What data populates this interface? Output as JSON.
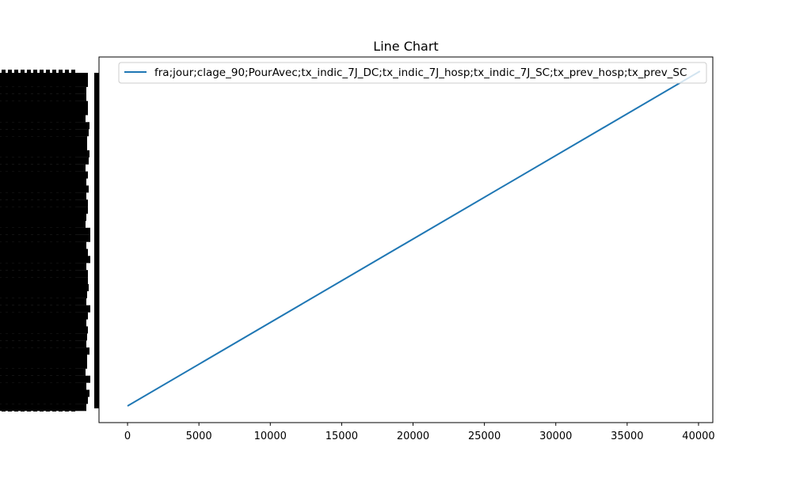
{
  "chart_data": {
    "type": "line",
    "title": "Line Chart",
    "xlabel": "",
    "ylabel": "",
    "x_ticks": [
      0,
      5000,
      10000,
      15000,
      20000,
      25000,
      30000,
      35000,
      40000
    ],
    "xlim": [
      -2000,
      41000
    ],
    "grid": false,
    "legend_position": "top-right",
    "y_tick_labels_note": "dense overlapping black tick labels, illegible",
    "series": [
      {
        "name": "fra;jour;clage_90;PourAvec;tx_indic_7J_DC;tx_indic_7J_hosp;tx_indic_7J_SC;tx_prev_hosp;tx_prev_SC",
        "color": "#1f77b4",
        "x": [
          0,
          40100
        ],
        "y": [
          0,
          1
        ]
      }
    ]
  }
}
